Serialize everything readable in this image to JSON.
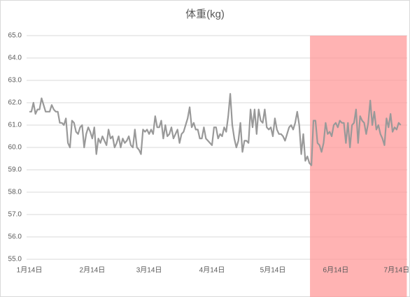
{
  "chart_data": {
    "type": "line",
    "title": "体重(kg)",
    "categories": [
      "1月14日",
      null,
      null,
      null,
      null,
      null,
      null,
      null,
      null,
      null,
      null,
      null,
      null,
      null,
      null,
      null,
      null,
      null,
      null,
      null,
      null,
      null,
      null,
      null,
      null,
      null,
      null,
      null,
      null,
      null,
      null,
      "2月14日",
      null,
      null,
      null,
      null,
      null,
      null,
      null,
      null,
      null,
      null,
      null,
      null,
      null,
      null,
      null,
      null,
      null,
      null,
      null,
      null,
      null,
      null,
      null,
      null,
      null,
      null,
      null,
      "3月14日",
      null,
      null,
      null,
      null,
      null,
      null,
      null,
      null,
      null,
      null,
      null,
      null,
      null,
      null,
      null,
      null,
      null,
      null,
      null,
      null,
      null,
      null,
      null,
      null,
      null,
      null,
      null,
      null,
      null,
      null,
      "4月14日",
      null,
      null,
      null,
      null,
      null,
      null,
      null,
      null,
      null,
      null,
      null,
      null,
      null,
      null,
      null,
      null,
      null,
      null,
      null,
      null,
      null,
      null,
      null,
      null,
      null,
      null,
      null,
      null,
      null,
      "5月14日",
      null,
      null,
      null,
      null,
      null,
      null,
      null,
      null,
      null,
      null,
      null,
      null,
      null,
      null,
      null,
      null,
      null,
      null,
      null,
      null,
      null,
      null,
      null,
      null,
      null,
      null,
      null,
      null,
      null,
      null,
      "6月14日",
      null,
      null,
      null,
      null,
      null,
      null,
      null,
      null,
      null,
      null,
      null,
      null,
      null,
      null,
      null,
      null,
      null,
      null,
      null,
      null,
      null,
      null,
      null,
      null,
      null,
      null,
      null,
      null,
      null,
      "7月14日",
      null,
      null
    ],
    "values": [
      61.6,
      61.6,
      62.0,
      61.5,
      61.7,
      61.7,
      62.2,
      61.9,
      61.6,
      61.6,
      61.6,
      61.9,
      61.7,
      61.6,
      61.6,
      61.1,
      61.1,
      61.0,
      61.3,
      60.2,
      60.0,
      61.2,
      61.1,
      60.7,
      60.6,
      60.9,
      61.0,
      60.0,
      60.6,
      60.9,
      60.7,
      60.4,
      60.9,
      59.7,
      60.4,
      60.2,
      60.5,
      60.3,
      60.1,
      60.8,
      60.4,
      60.5,
      60.0,
      60.2,
      60.5,
      60.0,
      60.4,
      60.2,
      60.3,
      60.5,
      60.1,
      60.0,
      60.8,
      60.0,
      59.9,
      59.7,
      60.8,
      60.7,
      60.8,
      60.6,
      60.8,
      60.6,
      61.4,
      60.9,
      60.9,
      61.2,
      60.4,
      61.0,
      60.5,
      60.6,
      60.9,
      60.4,
      60.6,
      60.8,
      60.2,
      60.6,
      60.7,
      61.0,
      61.3,
      61.8,
      60.9,
      61.1,
      60.8,
      60.8,
      60.4,
      60.4,
      60.9,
      60.4,
      60.3,
      60.2,
      60.1,
      60.9,
      60.9,
      60.4,
      60.6,
      60.5,
      60.9,
      60.7,
      61.4,
      62.4,
      61.0,
      60.4,
      60.0,
      60.3,
      61.1,
      59.8,
      60.3,
      60.3,
      60.2,
      61.7,
      60.9,
      61.7,
      60.6,
      61.7,
      61.2,
      61.1,
      61.7,
      60.9,
      60.8,
      60.9,
      60.5,
      61.3,
      60.8,
      60.6,
      60.6,
      60.5,
      60.3,
      60.6,
      60.9,
      61.0,
      60.8,
      61.1,
      61.6,
      61.0,
      59.7,
      60.6,
      59.4,
      59.6,
      59.3,
      59.2,
      61.2,
      61.2,
      60.2,
      60.1,
      59.8,
      60.2,
      61.1,
      60.6,
      60.7,
      60.5,
      61.0,
      61.1,
      60.9,
      61.2,
      61.1,
      61.1,
      60.2,
      61.1,
      60.0,
      61.0,
      61.1,
      61.7,
      60.2,
      61.4,
      61.2,
      61.1,
      60.6,
      61.1,
      62.1,
      61.0,
      61.6,
      60.8,
      61.0,
      60.6,
      60.4,
      60.1,
      61.3,
      60.9,
      61.5,
      60.7,
      60.9,
      60.8,
      61.1,
      61.0
    ],
    "color": "#999999",
    "ylim": [
      55,
      65
    ],
    "yticks": [
      {
        "value": 55,
        "label": "55.0"
      },
      {
        "value": 56,
        "label": "56.0"
      },
      {
        "value": 57,
        "label": "57.0"
      },
      {
        "value": 58,
        "label": "58.0"
      },
      {
        "value": 59,
        "label": "59.0"
      },
      {
        "value": 60,
        "label": "60.0"
      },
      {
        "value": 61,
        "label": "61.0"
      },
      {
        "value": 62,
        "label": "62.0"
      },
      {
        "value": 63,
        "label": "63.0"
      },
      {
        "value": 64,
        "label": "64.0"
      },
      {
        "value": 65,
        "label": "65.0"
      }
    ],
    "grid": true,
    "shaded_range": [
      138.3,
      186
    ],
    "shade_color": "#ff9999"
  }
}
